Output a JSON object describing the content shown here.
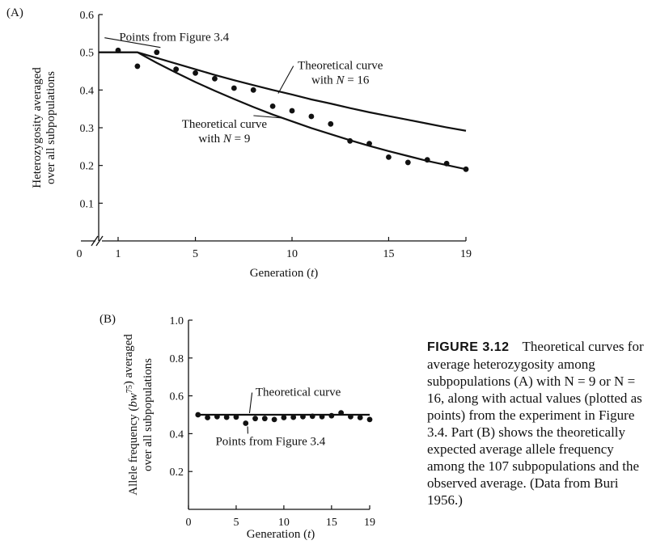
{
  "figure_label": "FIGURE 3.12",
  "caption": "Theoretical curves for average heterozygosity among subpopulations (A) with N = 9 or N = 16, along with actual values (plotted as points) from the experiment in Figure 3.4. Part (B) shows the theoretically expected average allele frequency among the 107 subpopulations and the observed average. (Data from Buri 1956.)",
  "colors": {
    "ink": "#111111",
    "background": "#ffffff"
  },
  "chart_data": [
    {
      "panel": "(A)",
      "type": "line",
      "ylabel": [
        "Heterozygosity averaged",
        "over all subpopulations"
      ],
      "xlabel": "Generation (t)",
      "ylim": [
        0,
        0.6
      ],
      "xlim": [
        1,
        19
      ],
      "y_ticks": [
        "0.1",
        "0.2",
        "0.3",
        "0.4",
        "0.5",
        "0.6"
      ],
      "x_ticks": [
        "1",
        "5",
        "10",
        "15",
        "19"
      ],
      "origin_label": "0",
      "axis_break": true,
      "series": [
        {
          "kind": "line",
          "x": [
            0,
            1,
            2,
            3,
            4,
            5,
            6,
            7,
            8,
            9,
            10,
            11,
            12,
            13,
            14,
            15,
            16,
            17,
            18,
            19
          ],
          "y": [
            0.5,
            0.5,
            0.5,
            0.485,
            0.47,
            0.455,
            0.44,
            0.426,
            0.413,
            0.4,
            0.388,
            0.375,
            0.364,
            0.352,
            0.341,
            0.331,
            0.321,
            0.311,
            0.301,
            0.292
          ]
        },
        {
          "kind": "line",
          "x": [
            0,
            1,
            2,
            3,
            4,
            5,
            6,
            7,
            8,
            9,
            10,
            11,
            12,
            13,
            14,
            15,
            16,
            17,
            18,
            19
          ],
          "y": [
            0.5,
            0.5,
            0.5,
            0.472,
            0.446,
            0.421,
            0.398,
            0.376,
            0.355,
            0.335,
            0.317,
            0.299,
            0.283,
            0.267,
            0.252,
            0.238,
            0.225,
            0.212,
            0.201,
            0.19
          ]
        },
        {
          "kind": "points",
          "x": [
            1,
            2,
            3,
            4,
            5,
            6,
            7,
            8,
            9,
            10,
            11,
            12,
            13,
            14,
            15,
            16,
            17,
            18,
            19
          ],
          "y": [
            0.505,
            0.463,
            0.5,
            0.455,
            0.445,
            0.43,
            0.405,
            0.4,
            0.357,
            0.345,
            0.33,
            0.31,
            0.265,
            0.258,
            0.222,
            0.208,
            0.215,
            0.205,
            0.19
          ]
        }
      ],
      "annotations": [
        {
          "lines": [
            "Points from Figure 3.4"
          ],
          "x": 3.9,
          "y": 0.53
        },
        {
          "lines": [
            "Theoretical curve",
            "with N = 16"
          ],
          "x": 12.5,
          "y": 0.455
        },
        {
          "lines": [
            "Theoretical curve",
            "with N = 9"
          ],
          "x": 6.5,
          "y": 0.3
        }
      ]
    },
    {
      "panel": "(B)",
      "type": "line",
      "ylabel": [
        "Allele frequency (bw75) averaged",
        "over all subpopulations"
      ],
      "xlabel": "Generation (t)",
      "ylim": [
        0,
        1.0
      ],
      "xlim": [
        0,
        19
      ],
      "y_ticks": [
        "0.2",
        "0.4",
        "0.6",
        "0.8",
        "1.0"
      ],
      "x_ticks": [
        "0",
        "5",
        "10",
        "15",
        "19"
      ],
      "series": [
        {
          "kind": "line",
          "x": [
            1,
            19
          ],
          "y": [
            0.5,
            0.5
          ]
        },
        {
          "kind": "points",
          "x": [
            1,
            2,
            3,
            4,
            5,
            6,
            7,
            8,
            9,
            10,
            11,
            12,
            13,
            14,
            15,
            16,
            17,
            18,
            19
          ],
          "y": [
            0.5,
            0.485,
            0.49,
            0.487,
            0.488,
            0.455,
            0.48,
            0.48,
            0.475,
            0.485,
            0.487,
            0.49,
            0.492,
            0.49,
            0.495,
            0.51,
            0.49,
            0.485,
            0.475
          ]
        }
      ],
      "annotations": [
        {
          "lines": [
            "Theoretical curve"
          ],
          "x": 11.5,
          "y": 0.6
        },
        {
          "lines": [
            "Points from Figure 3.4"
          ],
          "x": 8.6,
          "y": 0.34
        }
      ]
    }
  ]
}
